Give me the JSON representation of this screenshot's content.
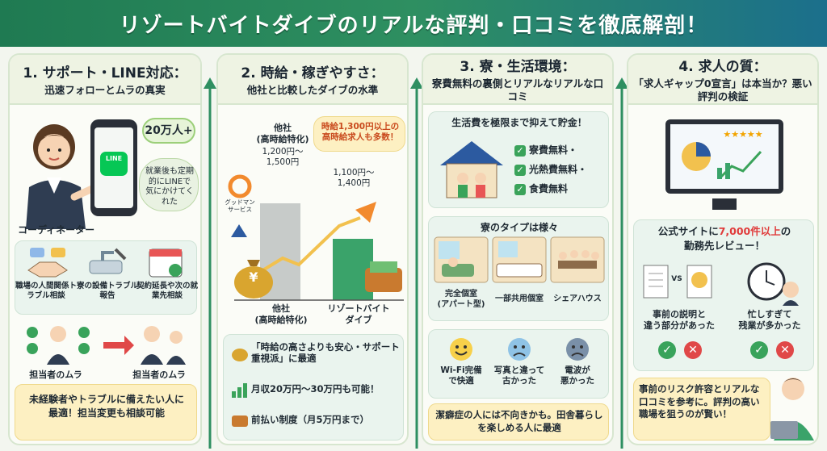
{
  "title": "リゾートバイトダイブのリアルな評判・口コミを徹底解剖！",
  "col1": {
    "heading": "1. サポート・LINE対応：",
    "subheading": "迅速フォローとムラの真実",
    "line_logo": "LINE",
    "users_badge": "20万人+",
    "speech": "就業後も定期的にLINEで気にかけてくれた",
    "coordinator_label": "コーディネーター",
    "services": [
      "職場の人間関係トラブル相談",
      "寮の設備トラブル報告",
      "契約延長や次の就業先相談"
    ],
    "staff_label_left": "担当者のムラ",
    "staff_label_right": "担当者のムラ",
    "bottom_note": "未経験者やトラブルに備えたい人に最適！担当変更も相談可能"
  },
  "col2": {
    "heading": "2. 時給・稼ぎやすさ：",
    "subheading": "他社と比較したダイブの水準",
    "callout": "時給1,300円以上の高時給求人も多数！",
    "bar_left_top": "他社\n(高時給特化)",
    "bar_left_range": "1,200円〜\n1,500円",
    "bar_right_range": "1,100円〜\n1,400円",
    "bar_left_axis": "他社\n(高時給特化)",
    "bar_right_axis": "リゾートバイト\nダイブ",
    "competitor_name": "グッドマン\nサービス",
    "money_symbol": "¥",
    "point1": "「時給の高さよりも安心・サポート重視派」に最適",
    "point2": "月収20万円〜30万円も可能！",
    "point3": "前払い制度（月5万円まで）",
    "chart_data": {
      "type": "bar",
      "categories": [
        "他社(高時給特化)",
        "リゾートバイトダイブ"
      ],
      "series": [
        {
          "values": [
            [
              1200,
              1500
            ],
            [
              1100,
              1400
            ]
          ]
        }
      ]
    }
  },
  "col3": {
    "heading": "3. 寮・生活環境：",
    "subheading": "寮費無料の裏側とリアルなリアルな口コミ",
    "savings_title": "生活費を極限まで抑えて貯金！",
    "checks": [
      "寮費無料・",
      "光熱費無料・",
      "食費無料"
    ],
    "types_title": "寮のタイプは様々",
    "types": [
      "完全個室\n(アパート型)",
      "一部共用個室",
      "シェアハウス"
    ],
    "reviews": [
      "Wi-Fi完備\nで快適",
      "写真と違って\n古かった",
      "電波が\n悪かった"
    ],
    "bottom_note": "潔癖症の人には不向きかも。田舎暮らしを楽しめる人に最適"
  },
  "col4": {
    "heading": "4. 求人の質：",
    "subheading": "「求人ギャップ0宣言」は本当か？悪い評判の検証",
    "review_count_pre": "公式サイトに",
    "review_count": "7,000件以上",
    "review_count_post": "の",
    "review_title_2": "勤務先レビュー！",
    "vs_label": "VS",
    "case1": "事前の説明と\n違う部分があった",
    "case2": "忙しすぎて\n残業が多かった",
    "bottom_note": "事前のリスク許容とリアルな口コミを参考に。評判の高い職場を狙うのが賢い！",
    "stars": "★★★★★"
  }
}
